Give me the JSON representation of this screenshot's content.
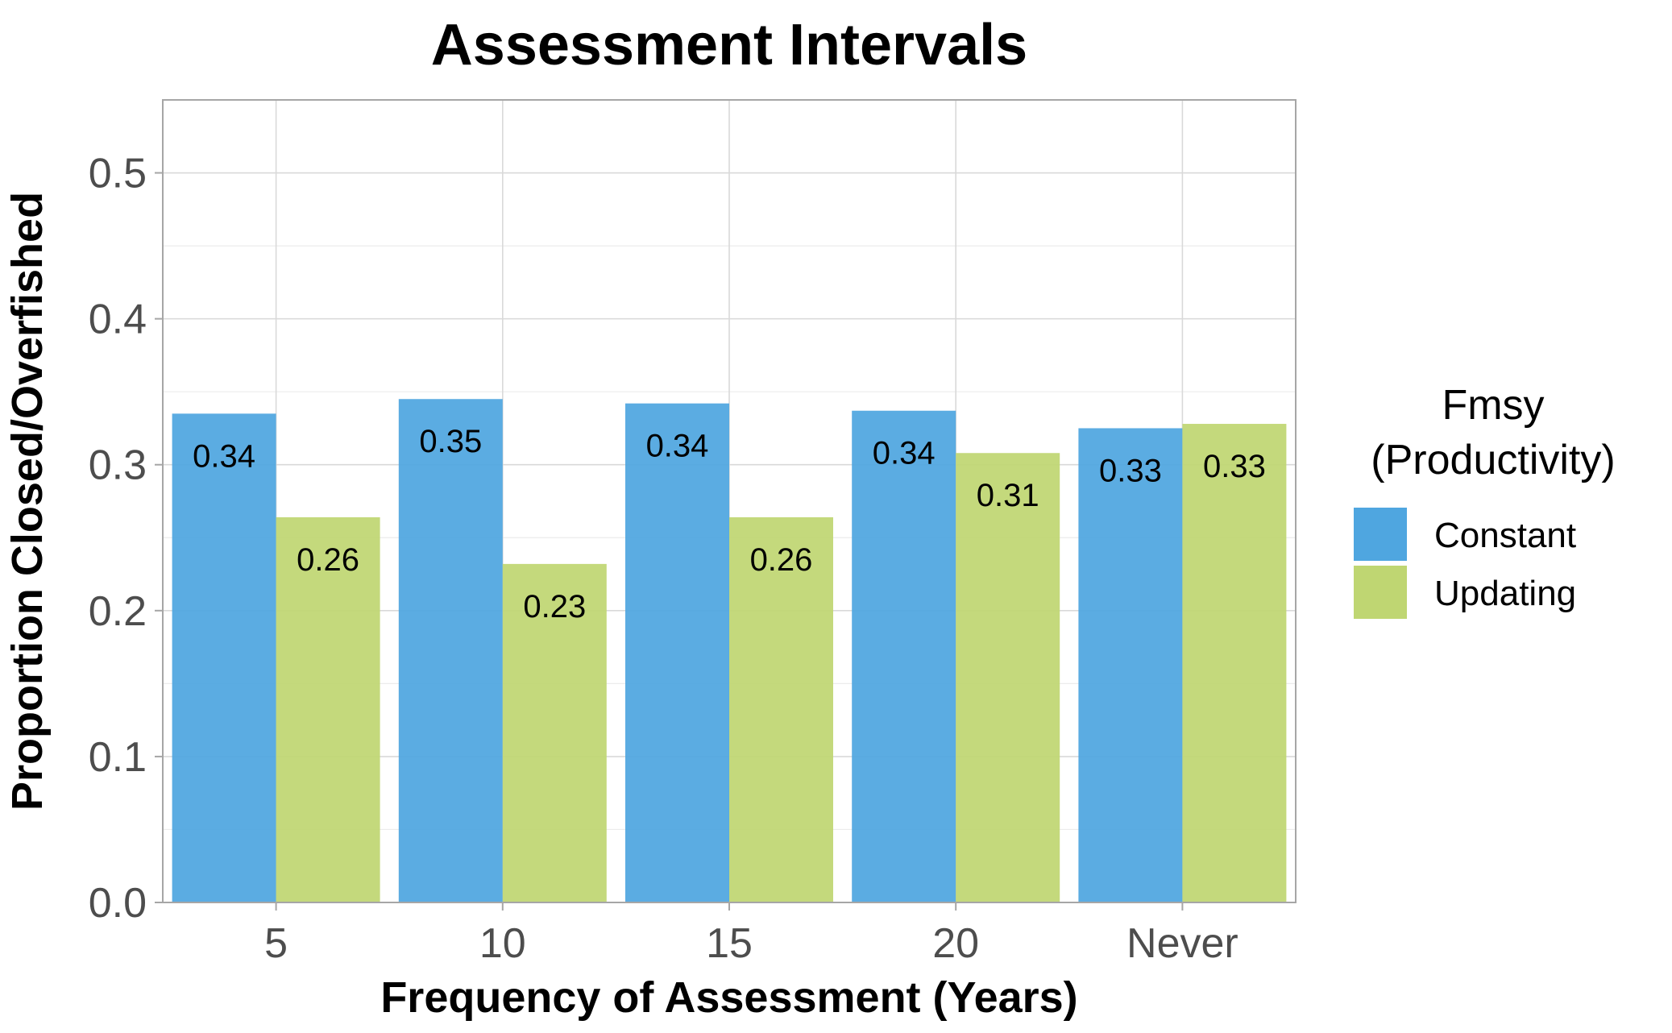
{
  "chart_data": {
    "type": "bar",
    "title": "Assessment Intervals",
    "xlabel": "Frequency of Assessment (Years)",
    "ylabel": "Proportion Closed/Overfished",
    "categories": [
      "5",
      "10",
      "15",
      "20",
      "Never"
    ],
    "series": [
      {
        "name": "Constant",
        "values": [
          0.335,
          0.345,
          0.342,
          0.337,
          0.325
        ],
        "labels": [
          "0.34",
          "0.35",
          "0.34",
          "0.34",
          "0.33"
        ],
        "color": "#4fa6e0"
      },
      {
        "name": "Updating",
        "values": [
          0.264,
          0.232,
          0.264,
          0.308,
          0.328
        ],
        "labels": [
          "0.26",
          "0.23",
          "0.26",
          "0.31",
          "0.33"
        ],
        "color": "#bfd672"
      }
    ],
    "ylim": [
      0,
      0.55
    ],
    "yticks": [
      "0.0",
      "0.1",
      "0.2",
      "0.3",
      "0.4",
      "0.5"
    ],
    "ytick_values": [
      0,
      0.1,
      0.2,
      0.3,
      0.4,
      0.5
    ],
    "grid": true,
    "legend": {
      "title_lines": [
        "Fmsy",
        "(Productivity)"
      ],
      "position": "right"
    }
  }
}
